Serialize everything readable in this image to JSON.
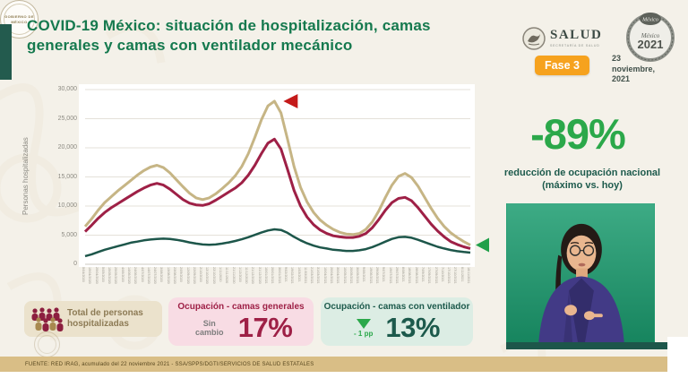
{
  "slide": {
    "title_line1": "COVID-19 México: situación de hospitalización, camas",
    "title_line2": "generales y camas con ventilador mecánico"
  },
  "header": {
    "salud_label": "SALUD",
    "salud_sublabel": "SECRETARÍA DE SALUD",
    "logo_2021_top": "México",
    "logo_2021_year": "2021",
    "fase_badge": "Fase 3",
    "date": "23 noviembre, 2021"
  },
  "colors": {
    "title_green": "#15794e",
    "accent_green": "#2ba84a",
    "dark_green": "#1d5a4c",
    "maroon": "#9e2046",
    "beige": "#c6b585",
    "orange_badge": "#f6a21e",
    "footer_gold": "#d9be86",
    "video_chroma_green": "#1b9c6f"
  },
  "chart_data": {
    "type": "line",
    "title": "",
    "xlabel": "",
    "ylabel": "Personas hospitalizadas",
    "ylim": [
      0,
      30000
    ],
    "yticks": [
      0,
      5000,
      10000,
      15000,
      20000,
      25000,
      30000
    ],
    "grid": true,
    "legend_position": "none",
    "x_labels": [
      "5/04/2020",
      "15/04/2020",
      "25/04/2020",
      "5/05/2020",
      "15/05/2020",
      "25/05/2020",
      "4/06/2020",
      "14/06/2020",
      "24/06/2020",
      "4/07/2020",
      "14/07/2020",
      "24/07/2020",
      "3/08/2020",
      "13/08/2020",
      "23/08/2020",
      "2/09/2020",
      "12/09/2020",
      "22/09/2020",
      "2/10/2020",
      "12/10/2020",
      "22/10/2020",
      "1/11/2020",
      "11/11/2020",
      "21/11/2020",
      "1/12/2020",
      "11/12/2020",
      "21/12/2020",
      "31/12/2020",
      "10/01/2021",
      "20/01/2021",
      "30/01/2021",
      "9/02/2021",
      "19/02/2021",
      "1/03/2021",
      "11/03/2021",
      "21/03/2021",
      "31/03/2021",
      "10/04/2021",
      "20/04/2021",
      "30/04/2021",
      "10/05/2021",
      "20/05/2021",
      "30/05/2021",
      "9/06/2021",
      "19/06/2021",
      "29/06/2021",
      "9/07/2021",
      "19/07/2021",
      "29/07/2021",
      "8/08/2021",
      "18/08/2021",
      "28/08/2021",
      "7/09/2021",
      "17/09/2021",
      "27/09/2021",
      "7/10/2021",
      "17/10/2021",
      "27/10/2021",
      "6/11/2021",
      "16/11/2021"
    ],
    "series": [
      {
        "name": "Total de personas hospitalizadas",
        "color": "#c6b585",
        "width": 3,
        "values": [
          6500,
          7800,
          9300,
          10600,
          11600,
          12600,
          13500,
          14400,
          15300,
          16100,
          16700,
          17000,
          16600,
          15700,
          14500,
          13300,
          12200,
          11400,
          11100,
          11400,
          12100,
          13000,
          14000,
          15200,
          16800,
          19000,
          21800,
          24800,
          27200,
          28000,
          26000,
          21500,
          16800,
          13200,
          10700,
          8900,
          7600,
          6700,
          6000,
          5500,
          5200,
          5100,
          5300,
          6000,
          7300,
          9200,
          11500,
          13600,
          15100,
          15600,
          14900,
          13400,
          11500,
          9600,
          7900,
          6500,
          5400,
          4600,
          3900,
          3300
        ]
      },
      {
        "name": "Ocupación - camas generales",
        "color": "#9e2046",
        "width": 3,
        "values": [
          5600,
          6700,
          7900,
          8900,
          9700,
          10400,
          11100,
          11800,
          12500,
          13100,
          13600,
          13900,
          13600,
          12900,
          12000,
          11100,
          10500,
          10200,
          10100,
          10400,
          11000,
          11700,
          12400,
          13100,
          14000,
          15300,
          17000,
          19000,
          20800,
          21500,
          19800,
          16300,
          12700,
          10000,
          8100,
          6800,
          5900,
          5300,
          4900,
          4700,
          4600,
          4600,
          4800,
          5300,
          6300,
          7700,
          9300,
          10600,
          11300,
          11500,
          10900,
          9700,
          8300,
          6900,
          5700,
          4700,
          3900,
          3400,
          3000,
          2700
        ]
      },
      {
        "name": "Ocupación - camas con ventilador",
        "color": "#1d564a",
        "width": 2.5,
        "values": [
          1400,
          1700,
          2100,
          2500,
          2800,
          3100,
          3400,
          3700,
          3900,
          4100,
          4250,
          4350,
          4400,
          4350,
          4200,
          4000,
          3750,
          3550,
          3400,
          3350,
          3400,
          3550,
          3750,
          4000,
          4300,
          4650,
          5050,
          5450,
          5800,
          6000,
          5900,
          5400,
          4700,
          4100,
          3600,
          3200,
          2900,
          2700,
          2500,
          2400,
          2300,
          2300,
          2400,
          2600,
          2950,
          3400,
          3900,
          4350,
          4650,
          4700,
          4550,
          4200,
          3800,
          3400,
          3000,
          2700,
          2450,
          2250,
          2100,
          2000
        ]
      }
    ],
    "annotations": [
      {
        "id": "peak-marker",
        "shape": "left-triangle",
        "color": "#c41a1a",
        "at": "max-of-series-0"
      },
      {
        "id": "latest-marker",
        "shape": "left-triangle",
        "color": "#21a04a",
        "at": "end-of-series-0"
      }
    ]
  },
  "highlight": {
    "value": "-89%",
    "caption": "reducción de ocupación nacional (máximo vs. hoy)"
  },
  "badges": {
    "total": {
      "label": "Total de personas hospitalizadas"
    },
    "generales": {
      "title": "Ocupación - camas generales",
      "change": "Sin cambio",
      "value": "17%"
    },
    "ventilador": {
      "title": "Ocupación - camas con ventilador",
      "change": "- 1 pp",
      "value": "13%"
    }
  },
  "footer": {
    "source": "FUENTE: RED IRAG, acumulado del 22 noviembre 2021  -  SSA/SPPS/DGTI/SERVICIOS DE SALUD ESTATALES",
    "seal_line1": "GOBIERNO DE",
    "seal_line2": "MÉXICO"
  }
}
